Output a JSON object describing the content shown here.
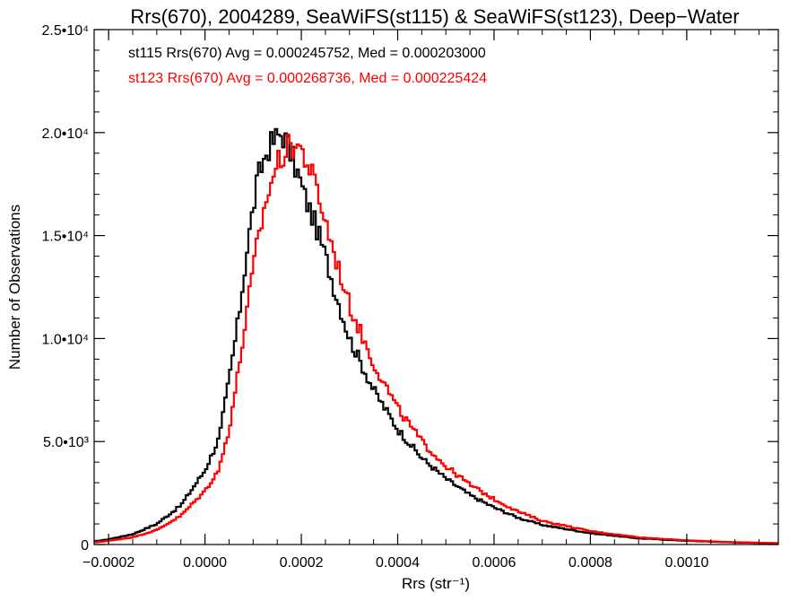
{
  "chart_data": {
    "type": "line",
    "title": "Rrs(670), 2004289, SeaWiFS(st115) & SeaWiFS(st123), Deep−Water",
    "xlabel": "Rrs (str⁻¹)",
    "ylabel": "Number of Observations",
    "xlim": [
      -0.00023,
      0.00119
    ],
    "ylim": [
      0,
      25000
    ],
    "x_ticks": [
      {
        "value": -0.0002,
        "label": "−0.0002"
      },
      {
        "value": 0.0,
        "label": "0.0000"
      },
      {
        "value": 0.0002,
        "label": "0.0002"
      },
      {
        "value": 0.0004,
        "label": "0.0004"
      },
      {
        "value": 0.0006,
        "label": "0.0006"
      },
      {
        "value": 0.0008,
        "label": "0.0008"
      },
      {
        "value": 0.001,
        "label": "0.0010"
      }
    ],
    "y_ticks": [
      {
        "value": 0,
        "label": "0"
      },
      {
        "value": 5000,
        "label": "5.0•10³"
      },
      {
        "value": 10000,
        "label": "1.0•10⁴"
      },
      {
        "value": 15000,
        "label": "1.5•10⁴"
      },
      {
        "value": 20000,
        "label": "2.0•10⁴"
      },
      {
        "value": 25000,
        "label": "2.5•10⁴"
      }
    ],
    "grid": false,
    "annotations": [
      {
        "text": "st115 Rrs(670) Avg = 0.000245752, Med = 0.000203000",
        "color": "#000000"
      },
      {
        "text": "st123 Rrs(670) Avg = 0.000268736, Med = 0.000225424",
        "color": "#ff0000"
      }
    ],
    "series": [
      {
        "color": "#000000",
        "points": [
          [
            -0.00023,
            150
          ],
          [
            -0.0002,
            250
          ],
          [
            -0.00015,
            500
          ],
          [
            -0.0001,
            1000
          ],
          [
            -5e-05,
            1900
          ],
          [
            0.0,
            3600
          ],
          [
            3e-05,
            5200
          ],
          [
            5e-05,
            8000
          ],
          [
            7e-05,
            11000
          ],
          [
            9e-05,
            14800
          ],
          [
            0.00011,
            17800
          ],
          [
            0.00013,
            19200
          ],
          [
            0.00015,
            19800
          ],
          [
            0.00016,
            20000
          ],
          [
            0.00017,
            19500
          ],
          [
            0.00019,
            18200
          ],
          [
            0.00021,
            16700
          ],
          [
            0.00023,
            15500
          ],
          [
            0.00025,
            14000
          ],
          [
            0.00027,
            12300
          ],
          [
            0.0003,
            10000
          ],
          [
            0.00035,
            7500
          ],
          [
            0.0004,
            5600
          ],
          [
            0.00045,
            4200
          ],
          [
            0.0005,
            3200
          ],
          [
            0.00055,
            2400
          ],
          [
            0.0006,
            1800
          ],
          [
            0.00065,
            1300
          ],
          [
            0.0007,
            950
          ],
          [
            0.0008,
            550
          ],
          [
            0.0009,
            300
          ],
          [
            0.001,
            180
          ],
          [
            0.0011,
            100
          ],
          [
            0.00119,
            60
          ]
        ]
      },
      {
        "color": "#ff0000",
        "points": [
          [
            -0.00023,
            100
          ],
          [
            -0.0002,
            180
          ],
          [
            -0.00015,
            350
          ],
          [
            -0.0001,
            700
          ],
          [
            -5e-05,
            1400
          ],
          [
            0.0,
            2600
          ],
          [
            3e-05,
            3700
          ],
          [
            5e-05,
            5600
          ],
          [
            7e-05,
            8500
          ],
          [
            9e-05,
            11800
          ],
          [
            0.00011,
            14800
          ],
          [
            0.00013,
            17000
          ],
          [
            0.00015,
            18500
          ],
          [
            0.00017,
            19200
          ],
          [
            0.00019,
            19500
          ],
          [
            0.00021,
            18700
          ],
          [
            0.00023,
            17400
          ],
          [
            0.00025,
            15700
          ],
          [
            0.00027,
            14000
          ],
          [
            0.0003,
            11600
          ],
          [
            0.00035,
            8800
          ],
          [
            0.0004,
            6600
          ],
          [
            0.00045,
            5000
          ],
          [
            0.0005,
            3800
          ],
          [
            0.00055,
            2900
          ],
          [
            0.0006,
            2200
          ],
          [
            0.00065,
            1600
          ],
          [
            0.0007,
            1150
          ],
          [
            0.0008,
            650
          ],
          [
            0.0009,
            350
          ],
          [
            0.001,
            200
          ],
          [
            0.0011,
            110
          ],
          [
            0.00119,
            70
          ]
        ]
      }
    ]
  }
}
